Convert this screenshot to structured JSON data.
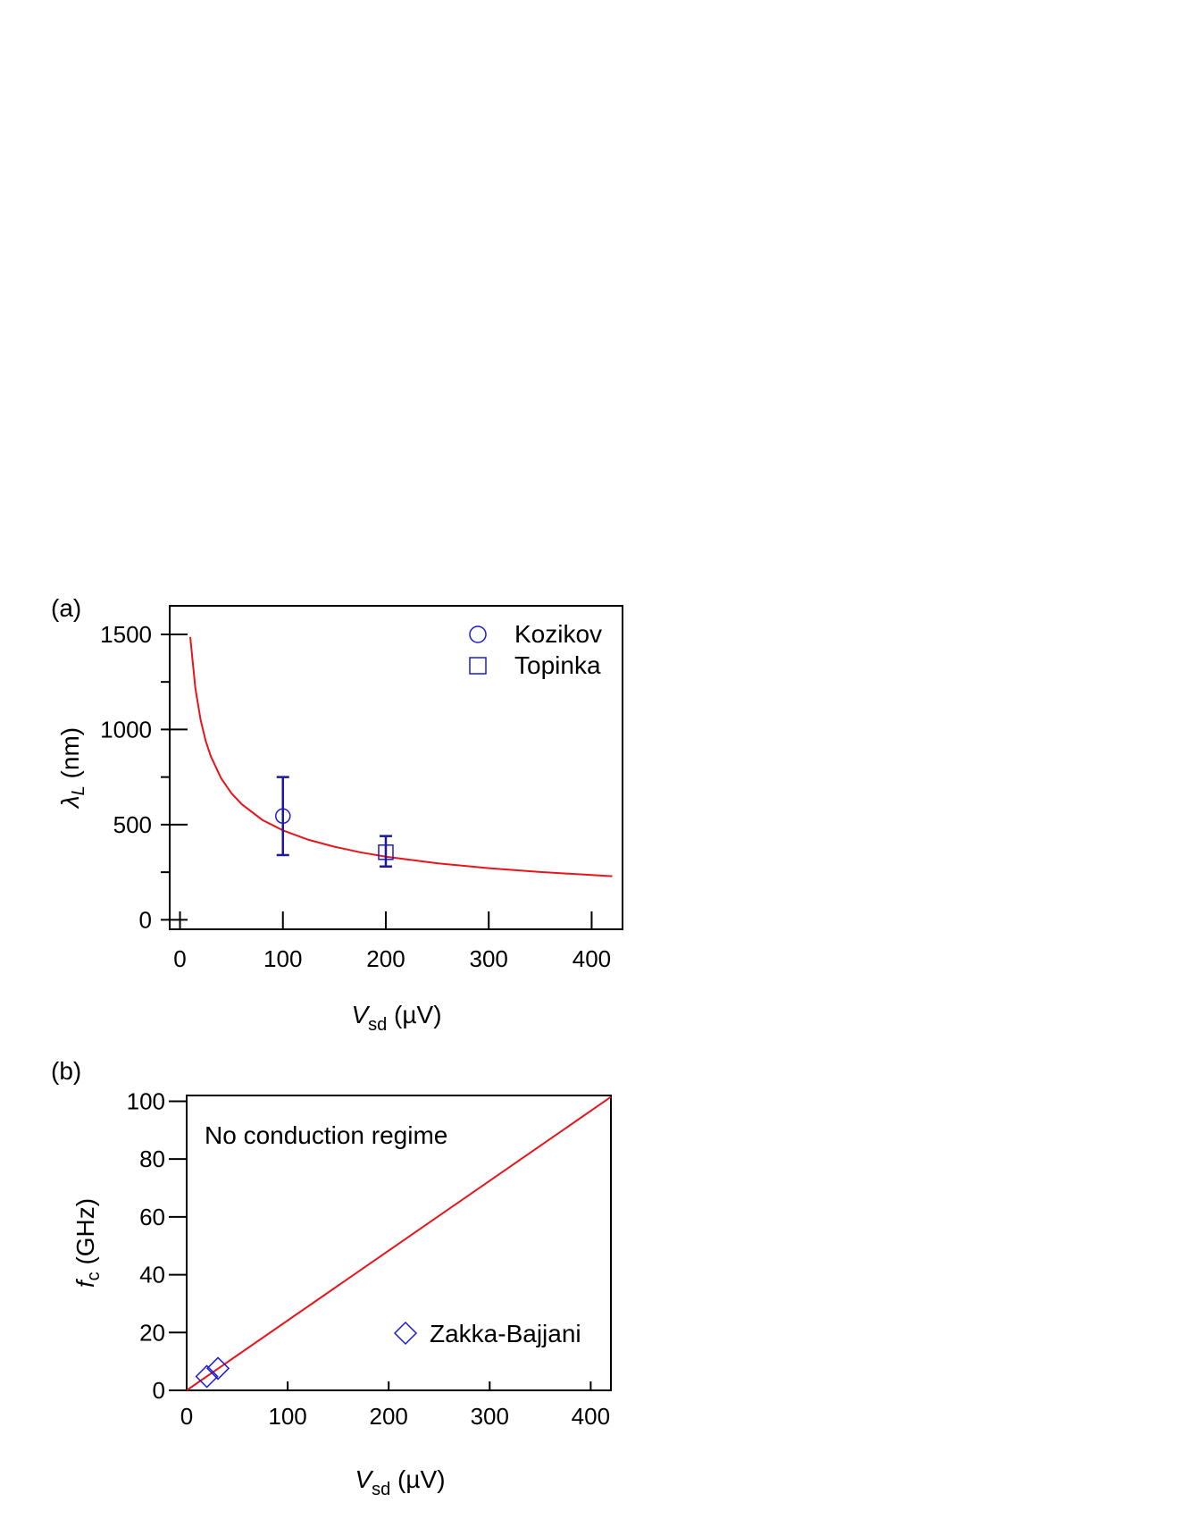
{
  "chart_data": [
    {
      "type": "scatter",
      "panel_label": "(a)",
      "xlabel_main": "V",
      "xlabel_sub": "sd",
      "xlabel_unit": " (µV)",
      "ylabel_main": "λ",
      "ylabel_sub": "L",
      "ylabel_unit": " (nm)",
      "xlim": [
        -10,
        430
      ],
      "ylim": [
        -50,
        1650
      ],
      "xticks": [
        0,
        100,
        200,
        300,
        400
      ],
      "xtick_labels": [
        "0",
        "100",
        "200",
        "300",
        "400"
      ],
      "yticks": [
        0,
        500,
        1000,
        1500
      ],
      "ytick_labels": [
        "0",
        "500",
        "1000",
        "1500"
      ],
      "y_minor_ticks": [
        250,
        750,
        1250
      ],
      "curve": {
        "type": "line",
        "description_formula": "y = 4700 / sqrt(x)",
        "x": [
          10,
          15,
          20,
          25,
          30,
          40,
          50,
          60,
          80,
          100,
          125,
          150,
          175,
          200,
          250,
          300,
          350,
          400,
          420
        ],
        "y": [
          1486,
          1214,
          1051,
          940,
          858,
          743,
          665,
          607,
          525,
          470,
          420,
          384,
          355,
          332,
          297,
          271,
          251,
          235,
          229
        ],
        "color": "#e8141c"
      },
      "series": [
        {
          "name": "Kozikov",
          "marker": "circle",
          "x": [
            100
          ],
          "y": [
            545
          ],
          "err_low": [
            340
          ],
          "err_high": [
            750
          ],
          "color": "#1a1ad6"
        },
        {
          "name": "Topinka",
          "marker": "square",
          "x": [
            200
          ],
          "y": [
            355
          ],
          "err_low": [
            280
          ],
          "err_high": [
            440
          ],
          "color": "#1a1ad6"
        }
      ],
      "legend_position": "top-right",
      "grid": false
    },
    {
      "type": "scatter",
      "panel_label": "(b)",
      "xlabel_main": "V",
      "xlabel_sub": "sd",
      "xlabel_unit": " (µV)",
      "ylabel_main": "f",
      "ylabel_sub": "c",
      "ylabel_unit": " (GHz)",
      "xlim": [
        0,
        420
      ],
      "ylim": [
        0,
        102
      ],
      "xticks": [
        0,
        100,
        200,
        300,
        400
      ],
      "xtick_labels": [
        "0",
        "100",
        "200",
        "300",
        "400"
      ],
      "yticks": [
        0,
        20,
        40,
        60,
        80,
        100
      ],
      "ytick_labels": [
        "0",
        "20",
        "40",
        "60",
        "80",
        "100"
      ],
      "annotation": "No conduction regime",
      "curve": {
        "type": "line",
        "x": [
          0,
          420
        ],
        "y": [
          0,
          101.5
        ],
        "color": "#e8141c"
      },
      "series": [
        {
          "name": "Zakka-Bajjani",
          "marker": "diamond",
          "x": [
            20,
            31
          ],
          "y": [
            4.8,
            7.6
          ],
          "color": "#1a1ad6"
        }
      ],
      "legend_position": "bottom-right",
      "grid": false
    }
  ]
}
